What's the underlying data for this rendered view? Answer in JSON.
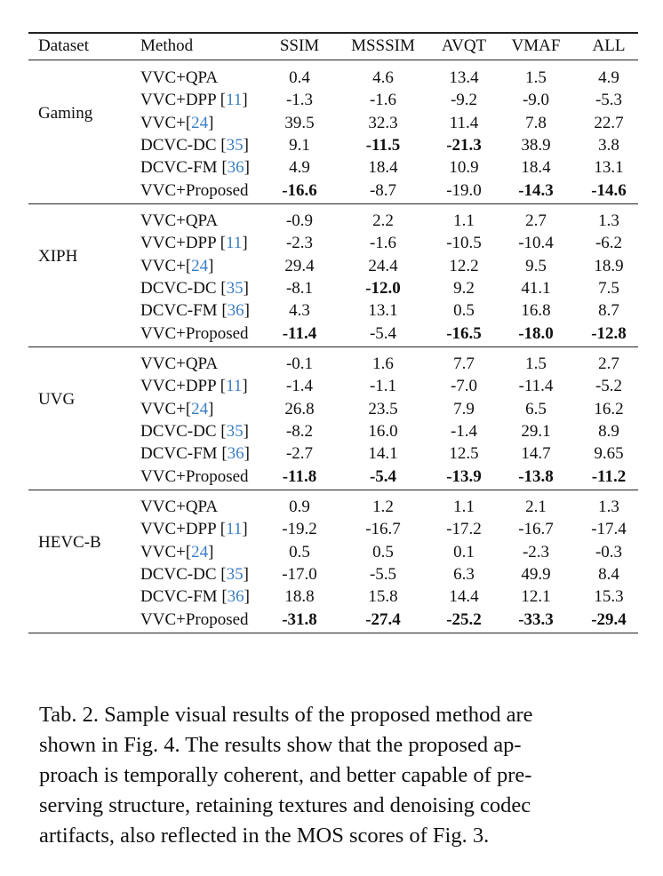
{
  "table": {
    "columns": [
      "Dataset",
      "Method",
      "SSIM",
      "MSSSIM",
      "AVQT",
      "VMAF",
      "ALL"
    ],
    "groups": [
      {
        "dataset": "Gaming",
        "rows": [
          {
            "method": "VVC+QPA",
            "ref": "",
            "values": [
              "0.4",
              "4.6",
              "13.4",
              "1.5",
              "4.9"
            ],
            "bold": [
              false,
              false,
              false,
              false,
              false
            ]
          },
          {
            "method": "VVC+DPP ",
            "ref": "11",
            "values": [
              "-1.3",
              "-1.6",
              "-9.2",
              "-9.0",
              "-5.3"
            ],
            "bold": [
              false,
              false,
              false,
              false,
              false
            ]
          },
          {
            "method": "VVC+",
            "ref": "24",
            "values": [
              "39.5",
              "32.3",
              "11.4",
              "7.8",
              "22.7"
            ],
            "bold": [
              false,
              false,
              false,
              false,
              false
            ]
          },
          {
            "method": "DCVC-DC ",
            "ref": "35",
            "values": [
              "9.1",
              "-11.5",
              "-21.3",
              "38.9",
              "3.8"
            ],
            "bold": [
              false,
              true,
              true,
              false,
              false
            ]
          },
          {
            "method": "DCVC-FM ",
            "ref": "36",
            "values": [
              "4.9",
              "18.4",
              "10.9",
              "18.4",
              "13.1"
            ],
            "bold": [
              false,
              false,
              false,
              false,
              false
            ]
          },
          {
            "method": "VVC+Proposed",
            "ref": "",
            "values": [
              "-16.6",
              "-8.7",
              "-19.0",
              "-14.3",
              "-14.6"
            ],
            "bold": [
              true,
              false,
              false,
              true,
              true
            ]
          }
        ]
      },
      {
        "dataset": "XIPH",
        "rows": [
          {
            "method": "VVC+QPA",
            "ref": "",
            "values": [
              "-0.9",
              "2.2",
              "1.1",
              "2.7",
              "1.3"
            ],
            "bold": [
              false,
              false,
              false,
              false,
              false
            ]
          },
          {
            "method": "VVC+DPP ",
            "ref": "11",
            "values": [
              "-2.3",
              "-1.6",
              "-10.5",
              "-10.4",
              "-6.2"
            ],
            "bold": [
              false,
              false,
              false,
              false,
              false
            ]
          },
          {
            "method": "VVC+",
            "ref": "24",
            "values": [
              "29.4",
              "24.4",
              "12.2",
              "9.5",
              "18.9"
            ],
            "bold": [
              false,
              false,
              false,
              false,
              false
            ]
          },
          {
            "method": "DCVC-DC ",
            "ref": "35",
            "values": [
              "-8.1",
              "-12.0",
              "9.2",
              "41.1",
              "7.5"
            ],
            "bold": [
              false,
              true,
              false,
              false,
              false
            ]
          },
          {
            "method": "DCVC-FM ",
            "ref": "36",
            "values": [
              "4.3",
              "13.1",
              "0.5",
              "16.8",
              "8.7"
            ],
            "bold": [
              false,
              false,
              false,
              false,
              false
            ]
          },
          {
            "method": "VVC+Proposed",
            "ref": "",
            "values": [
              "-11.4",
              "-5.4",
              "-16.5",
              "-18.0",
              "-12.8"
            ],
            "bold": [
              true,
              false,
              true,
              true,
              true
            ]
          }
        ]
      },
      {
        "dataset": "UVG",
        "rows": [
          {
            "method": "VVC+QPA",
            "ref": "",
            "values": [
              "-0.1",
              "1.6",
              "7.7",
              "1.5",
              "2.7"
            ],
            "bold": [
              false,
              false,
              false,
              false,
              false
            ]
          },
          {
            "method": "VVC+DPP ",
            "ref": "11",
            "values": [
              "-1.4",
              "-1.1",
              "-7.0",
              "-11.4",
              "-5.2"
            ],
            "bold": [
              false,
              false,
              false,
              false,
              false
            ]
          },
          {
            "method": "VVC+",
            "ref": "24",
            "values": [
              "26.8",
              "23.5",
              "7.9",
              "6.5",
              "16.2"
            ],
            "bold": [
              false,
              false,
              false,
              false,
              false
            ]
          },
          {
            "method": "DCVC-DC ",
            "ref": "35",
            "values": [
              "-8.2",
              "16.0",
              "-1.4",
              "29.1",
              "8.9"
            ],
            "bold": [
              false,
              false,
              false,
              false,
              false
            ]
          },
          {
            "method": "DCVC-FM ",
            "ref": "36",
            "values": [
              "-2.7",
              "14.1",
              "12.5",
              "14.7",
              "9.65"
            ],
            "bold": [
              false,
              false,
              false,
              false,
              false
            ]
          },
          {
            "method": "VVC+Proposed",
            "ref": "",
            "values": [
              "-11.8",
              "-5.4",
              "-13.9",
              "-13.8",
              "-11.2"
            ],
            "bold": [
              true,
              true,
              true,
              true,
              true
            ]
          }
        ]
      },
      {
        "dataset": "HEVC-B",
        "rows": [
          {
            "method": "VVC+QPA",
            "ref": "",
            "values": [
              "0.9",
              "1.2",
              "1.1",
              "2.1",
              "1.3"
            ],
            "bold": [
              false,
              false,
              false,
              false,
              false
            ]
          },
          {
            "method": "VVC+DPP ",
            "ref": "11",
            "values": [
              "-19.2",
              "-16.7",
              "-17.2",
              "-16.7",
              "-17.4"
            ],
            "bold": [
              false,
              false,
              false,
              false,
              false
            ]
          },
          {
            "method": "VVC+",
            "ref": "24",
            "values": [
              "0.5",
              "0.5",
              "0.1",
              "-2.3",
              "-0.3"
            ],
            "bold": [
              false,
              false,
              false,
              false,
              false
            ]
          },
          {
            "method": "DCVC-DC ",
            "ref": "35",
            "values": [
              "-17.0",
              "-5.5",
              "6.3",
              "49.9",
              "8.4"
            ],
            "bold": [
              false,
              false,
              false,
              false,
              false
            ]
          },
          {
            "method": "DCVC-FM ",
            "ref": "36",
            "values": [
              "18.8",
              "15.8",
              "14.4",
              "12.1",
              "15.3"
            ],
            "bold": [
              false,
              false,
              false,
              false,
              false
            ]
          },
          {
            "method": "VVC+Proposed",
            "ref": "",
            "values": [
              "-31.8",
              "-27.4",
              "-25.2",
              "-33.3",
              "-29.4"
            ],
            "bold": [
              true,
              true,
              true,
              true,
              true
            ]
          }
        ]
      }
    ]
  },
  "caption_lines": [
    "Tab. 2. Sample visual results of the proposed method are",
    "shown in Fig. 4.  The results show that the proposed ap-",
    "proach is temporally coherent, and better capable of pre-",
    "serving structure, retaining textures and denoising codec",
    "artifacts, also reflected in the MOS scores of Fig. 3."
  ],
  "colors": {
    "citation": "#3b7fc4"
  }
}
